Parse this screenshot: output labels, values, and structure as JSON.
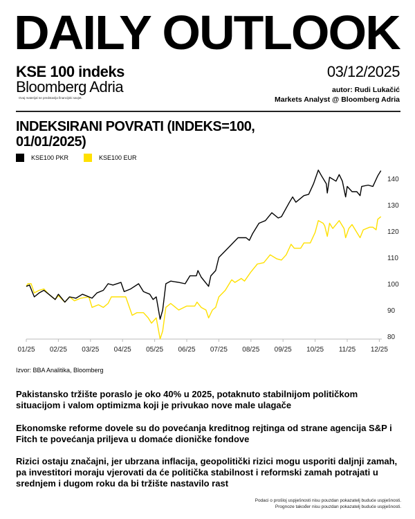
{
  "header": {
    "title": "DAILY OUTLOOK",
    "index_name": "KSE 100 indeks",
    "brand": "Bloomberg Adria",
    "disclaimer": "Ovaj materijal ne predstavlja financijski savjet.",
    "date": "03/12/2025",
    "author": "autor: Rudi Lukačić",
    "role": "Markets Analyst @ Bloomberg Adria"
  },
  "chart_data": {
    "type": "line",
    "title": "INDEKSIRANI POVRATI (INDEKS=100, 01/01/2025)",
    "xlabel": "",
    "ylabel": "",
    "x_unit": "months since 01/2025",
    "xticks": [
      "01/25",
      "02/25",
      "03/25",
      "04/25",
      "05/25",
      "06/25",
      "07/25",
      "08/25",
      "09/25",
      "10/25",
      "11/25",
      "12/25"
    ],
    "yticks": [
      80,
      90,
      100,
      110,
      120,
      130,
      140
    ],
    "ylim": [
      79,
      144
    ],
    "xlim": [
      0,
      11.05
    ],
    "grid": false,
    "legend_position": "top-left",
    "series": [
      {
        "name": "KSE100 PKR",
        "color": "#000000",
        "points": [
          [
            0,
            99
          ],
          [
            0.1,
            99.5
          ],
          [
            0.25,
            95
          ],
          [
            0.4,
            96.5
          ],
          [
            0.55,
            97.5
          ],
          [
            0.7,
            96
          ],
          [
            0.9,
            94
          ],
          [
            1.0,
            96
          ],
          [
            1.2,
            93
          ],
          [
            1.35,
            95
          ],
          [
            1.55,
            94.5
          ],
          [
            1.75,
            96
          ],
          [
            1.95,
            95
          ],
          [
            2.05,
            94.5
          ],
          [
            2.2,
            96.5
          ],
          [
            2.4,
            97.5
          ],
          [
            2.55,
            100
          ],
          [
            2.7,
            99.5
          ],
          [
            2.95,
            100.5
          ],
          [
            3.05,
            97
          ],
          [
            3.25,
            98
          ],
          [
            3.5,
            100
          ],
          [
            3.65,
            97
          ],
          [
            3.85,
            96
          ],
          [
            3.95,
            94
          ],
          [
            4.05,
            95
          ],
          [
            4.17,
            86.5
          ],
          [
            4.25,
            90
          ],
          [
            4.35,
            100
          ],
          [
            4.5,
            101
          ],
          [
            4.75,
            100.5
          ],
          [
            4.95,
            100
          ],
          [
            5.1,
            103
          ],
          [
            5.3,
            103
          ],
          [
            5.35,
            105
          ],
          [
            5.45,
            102.5
          ],
          [
            5.68,
            99
          ],
          [
            5.75,
            103
          ],
          [
            5.9,
            105
          ],
          [
            6.0,
            110
          ],
          [
            6.2,
            112.5
          ],
          [
            6.4,
            115
          ],
          [
            6.6,
            117.5
          ],
          [
            6.85,
            117.5
          ],
          [
            6.95,
            116.5
          ],
          [
            7.05,
            119
          ],
          [
            7.25,
            123
          ],
          [
            7.45,
            124
          ],
          [
            7.65,
            127
          ],
          [
            7.85,
            125
          ],
          [
            7.95,
            125.5
          ],
          [
            8.2,
            131
          ],
          [
            8.3,
            133
          ],
          [
            8.4,
            131
          ],
          [
            8.65,
            133.5
          ],
          [
            8.8,
            134
          ],
          [
            8.95,
            138
          ],
          [
            9.1,
            143.2
          ],
          [
            9.2,
            141
          ],
          [
            9.35,
            138
          ],
          [
            9.38,
            134.5
          ],
          [
            9.45,
            140.5
          ],
          [
            9.65,
            139
          ],
          [
            9.75,
            141.5
          ],
          [
            9.85,
            139
          ],
          [
            9.95,
            133
          ],
          [
            10.0,
            137
          ],
          [
            10.15,
            135
          ],
          [
            10.3,
            135
          ],
          [
            10.4,
            133.5
          ],
          [
            10.45,
            137
          ],
          [
            10.65,
            137.5
          ],
          [
            10.8,
            137
          ],
          [
            10.95,
            141
          ],
          [
            11.05,
            143
          ]
        ]
      },
      {
        "name": "KSE100 EUR",
        "color": "#FFE000",
        "points": [
          [
            0,
            99
          ],
          [
            0.05,
            100
          ],
          [
            0.15,
            100
          ],
          [
            0.25,
            96.5
          ],
          [
            0.4,
            97.5
          ],
          [
            0.55,
            98
          ],
          [
            0.7,
            96
          ],
          [
            0.9,
            94
          ],
          [
            1.0,
            95.5
          ],
          [
            1.2,
            93
          ],
          [
            1.35,
            95
          ],
          [
            1.5,
            93.5
          ],
          [
            1.7,
            94.5
          ],
          [
            1.95,
            95
          ],
          [
            2.05,
            91
          ],
          [
            2.25,
            92
          ],
          [
            2.4,
            91
          ],
          [
            2.55,
            92.5
          ],
          [
            2.65,
            95
          ],
          [
            2.9,
            95
          ],
          [
            3.1,
            95
          ],
          [
            3.3,
            88
          ],
          [
            3.45,
            89
          ],
          [
            3.65,
            89
          ],
          [
            3.8,
            87
          ],
          [
            3.9,
            85
          ],
          [
            4.05,
            87
          ],
          [
            4.17,
            79
          ],
          [
            4.25,
            82
          ],
          [
            4.35,
            91
          ],
          [
            4.5,
            92.5
          ],
          [
            4.75,
            90
          ],
          [
            5.0,
            91.5
          ],
          [
            5.25,
            91.5
          ],
          [
            5.32,
            93
          ],
          [
            5.45,
            91
          ],
          [
            5.6,
            90
          ],
          [
            5.68,
            87
          ],
          [
            5.8,
            90
          ],
          [
            5.9,
            91
          ],
          [
            6.0,
            95
          ],
          [
            6.2,
            97.5
          ],
          [
            6.4,
            101.5
          ],
          [
            6.5,
            100.5
          ],
          [
            6.7,
            102
          ],
          [
            6.8,
            101
          ],
          [
            7.0,
            104.5
          ],
          [
            7.2,
            107.5
          ],
          [
            7.4,
            108
          ],
          [
            7.6,
            111
          ],
          [
            7.8,
            109.5
          ],
          [
            7.95,
            109
          ],
          [
            8.1,
            111
          ],
          [
            8.25,
            115
          ],
          [
            8.35,
            113.5
          ],
          [
            8.55,
            113.5
          ],
          [
            8.65,
            115.5
          ],
          [
            8.85,
            115.5
          ],
          [
            9.0,
            119.5
          ],
          [
            9.1,
            124
          ],
          [
            9.25,
            123
          ],
          [
            9.3,
            122
          ],
          [
            9.38,
            118
          ],
          [
            9.45,
            123
          ],
          [
            9.55,
            121
          ],
          [
            9.75,
            124
          ],
          [
            9.9,
            121
          ],
          [
            9.95,
            117.5
          ],
          [
            10.05,
            121
          ],
          [
            10.15,
            122.5
          ],
          [
            10.3,
            119.5
          ],
          [
            10.4,
            117.5
          ],
          [
            10.5,
            120.5
          ],
          [
            10.7,
            121.5
          ],
          [
            10.8,
            121.5
          ],
          [
            10.9,
            120.5
          ],
          [
            10.95,
            124.5
          ],
          [
            11.05,
            125.5
          ]
        ]
      }
    ]
  },
  "source": "Izvor: BBA Analitika, Bloomberg",
  "paragraphs": [
    "Pakistansko tržište poraslo je oko 40% u 2025, potaknuto stabilnijom političkom situacijom i valom optimizma koji je privukao nove male ulagače",
    "Ekonomske reforme dovele su do povećanja kreditnog rejtinga od strane agencija S&P i Fitch te povećanja priljeva u domaće dioničke fondove",
    "Rizici ostaju značajni, jer ubrzana inflacija, geopolitički rizici mogu usporiti daljnji zamah, pa investitori moraju vjerovati da će politička stabilnost i reformski zamah potrajati u srednjem i dugom roku da bi tržište nastavilo rast"
  ],
  "footer": {
    "line1": "Podaci o prošloj uspješnosti nisu pouzdan pokazatelj buduće uspješnosti.",
    "line2": "Prognoze također nisu pouzdan pokazatelj buduće uspješnosti."
  }
}
